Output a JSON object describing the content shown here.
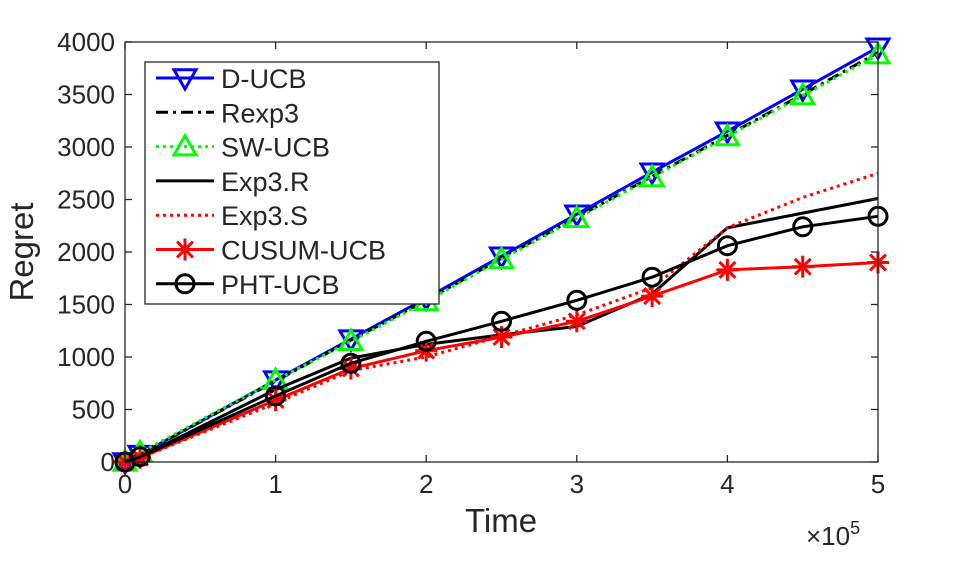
{
  "chart_data": {
    "type": "line",
    "xlabel": "Time",
    "ylabel": "Regret",
    "x_exponent_label": "×10",
    "x_exponent_power": "5",
    "xlim": [
      0,
      500000
    ],
    "ylim": [
      0,
      4000
    ],
    "x_ticks": [
      0,
      100000,
      200000,
      300000,
      400000,
      500000
    ],
    "x_tick_labels": [
      "0",
      "1",
      "2",
      "3",
      "4",
      "5"
    ],
    "y_ticks": [
      0,
      500,
      1000,
      1500,
      2000,
      2500,
      3000,
      3500,
      4000
    ],
    "y_tick_labels": [
      "0",
      "500",
      "1000",
      "1500",
      "2000",
      "2500",
      "3000",
      "3500",
      "4000"
    ],
    "grid": false,
    "legend_position": "top-left",
    "series": [
      {
        "name": "D-UCB",
        "color": "#0000ff",
        "line_style": "solid",
        "marker": "triangle-down",
        "x": [
          0,
          10000,
          100000,
          150000,
          200000,
          250000,
          300000,
          350000,
          400000,
          450000,
          500000
        ],
        "y": [
          0,
          70,
          780,
          1170,
          1560,
          1960,
          2360,
          2760,
          3150,
          3550,
          3950
        ]
      },
      {
        "name": "Rexp3",
        "color": "#000000",
        "line_style": "dashdot",
        "marker": "none",
        "x": [
          0,
          10000,
          100000,
          150000,
          200000,
          250000,
          300000,
          350000,
          400000,
          450000,
          500000
        ],
        "y": [
          0,
          70,
          770,
          1160,
          1540,
          1940,
          2330,
          2720,
          3110,
          3500,
          3900
        ]
      },
      {
        "name": "SW-UCB",
        "color": "#00ff00",
        "line_style": "dotted",
        "marker": "triangle-up",
        "x": [
          0,
          10000,
          100000,
          150000,
          200000,
          250000,
          300000,
          350000,
          400000,
          450000,
          500000
        ],
        "y": [
          0,
          90,
          780,
          1150,
          1530,
          1930,
          2320,
          2710,
          3100,
          3490,
          3880
        ]
      },
      {
        "name": "Exp3.R",
        "color": "#000000",
        "line_style": "solid",
        "marker": "none",
        "x": [
          0,
          10000,
          100000,
          150000,
          200000,
          250000,
          300000,
          350000,
          400000,
          450000,
          500000
        ],
        "y": [
          0,
          50,
          690,
          990,
          1120,
          1210,
          1290,
          1600,
          2230,
          2370,
          2510
        ]
      },
      {
        "name": "Exp3.S",
        "color": "#ff0000",
        "line_style": "dotted",
        "marker": "none",
        "x": [
          0,
          10000,
          100000,
          150000,
          200000,
          250000,
          300000,
          350000,
          400000,
          450000,
          500000
        ],
        "y": [
          0,
          40,
          560,
          870,
          1000,
          1200,
          1400,
          1660,
          2230,
          2520,
          2750
        ]
      },
      {
        "name": "CUSUM-UCB",
        "color": "#ff0000",
        "line_style": "solid",
        "marker": "asterisk",
        "x": [
          0,
          10000,
          100000,
          150000,
          200000,
          250000,
          300000,
          350000,
          400000,
          450000,
          500000
        ],
        "y": [
          0,
          40,
          590,
          890,
          1060,
          1190,
          1340,
          1580,
          1830,
          1860,
          1900
        ]
      },
      {
        "name": "PHT-UCB",
        "color": "#000000",
        "line_style": "solid",
        "marker": "circle",
        "x": [
          0,
          10000,
          100000,
          150000,
          200000,
          250000,
          300000,
          350000,
          400000,
          450000,
          500000
        ],
        "y": [
          0,
          50,
          630,
          940,
          1150,
          1340,
          1540,
          1760,
          2060,
          2240,
          2340
        ]
      }
    ]
  }
}
